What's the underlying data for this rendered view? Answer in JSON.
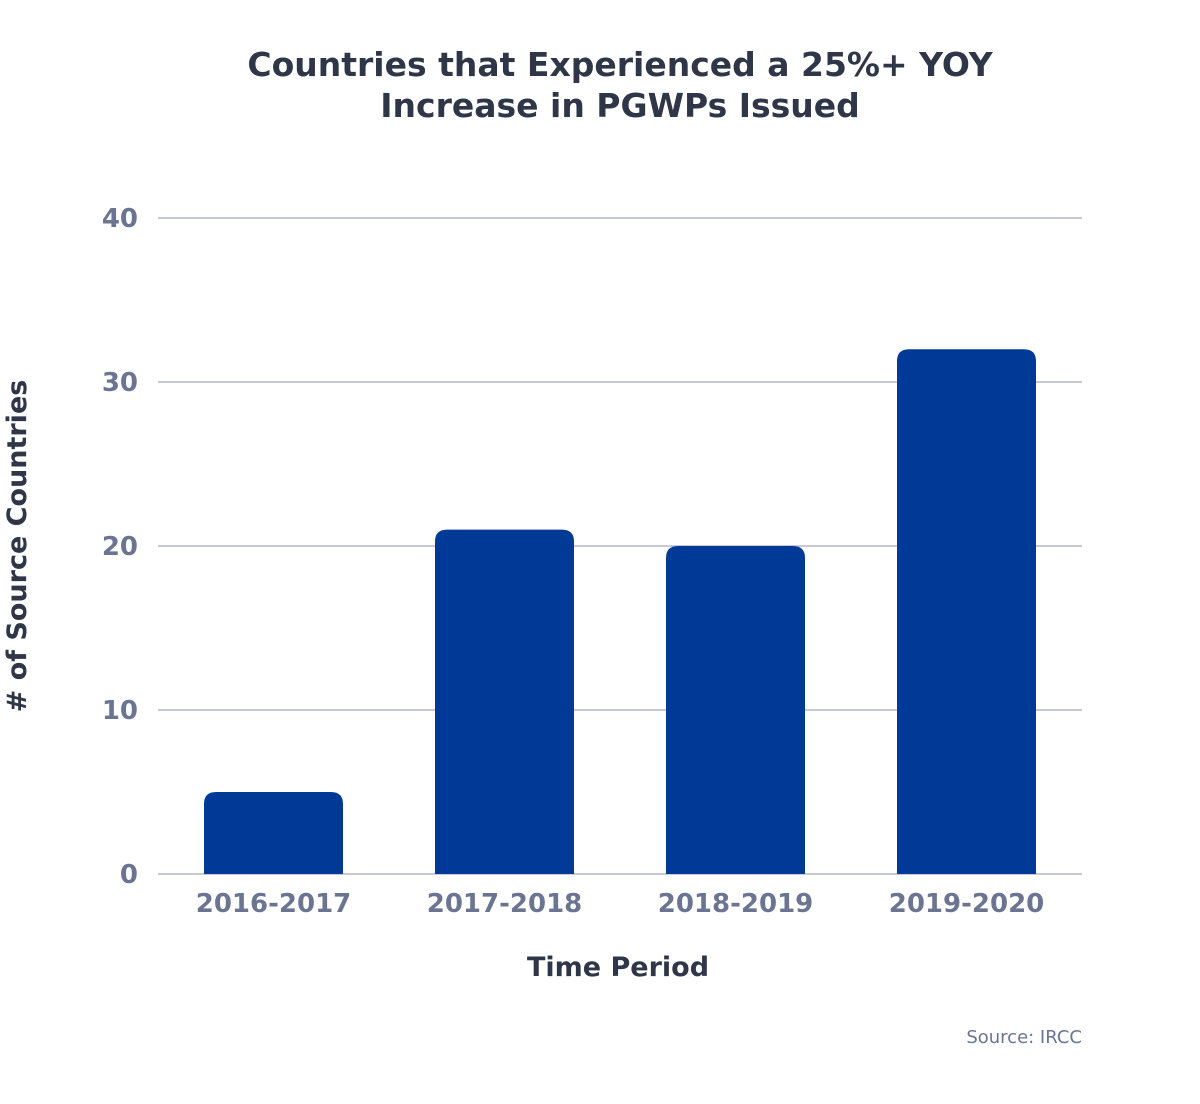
{
  "chart_data": {
    "type": "bar",
    "title_lines": [
      "Countries that Experienced a 25%+ YOY",
      "Increase in PGWPs Issued"
    ],
    "categories": [
      "2016-2017",
      "2017-2018",
      "2018-2019",
      "2019-2020"
    ],
    "values": [
      5,
      21,
      20,
      32
    ],
    "xlabel": "Time Period",
    "ylabel": "# of Source Countries",
    "ylim": [
      0,
      40
    ],
    "yticks": [
      0,
      10,
      20,
      30,
      40
    ],
    "grid": true,
    "bar_color": "#003a96",
    "source": "Source: IRCC"
  }
}
